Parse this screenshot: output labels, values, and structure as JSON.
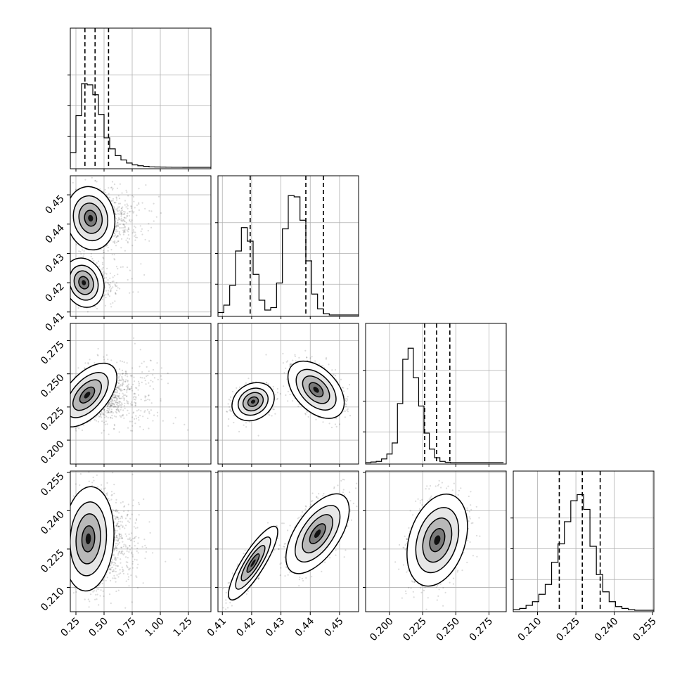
{
  "chart_data": {
    "type": "corner",
    "grid": true,
    "colors": {
      "axes": "#000000",
      "grid": "#b0b0b0",
      "points": "#000000",
      "fill_dark": "#111111",
      "fill_light": "#ffffff"
    },
    "params": [
      {
        "id": "p0",
        "range": [
          0.2,
          1.45
        ],
        "ticks": [
          0.25,
          0.5,
          0.75,
          1.0,
          1.25
        ],
        "tick_labels": [
          "0.25",
          "0.50",
          "0.75",
          "1.00",
          "1.25"
        ],
        "quantiles": [
          0.33,
          0.42,
          0.54
        ],
        "hist": {
          "edges_start": 0.2,
          "bin_width": 0.05,
          "counts": [
            0.12,
            0.42,
            0.68,
            0.67,
            0.59,
            0.43,
            0.24,
            0.15,
            0.095,
            0.06,
            0.035,
            0.02,
            0.013,
            0.008,
            0.004,
            0.003,
            0.002,
            0.001,
            0.0005,
            0.0003,
            0.0002,
            0.0001,
            0.0,
            0.0,
            0.0
          ]
        }
      },
      {
        "id": "p1",
        "range": [
          0.4085,
          0.4565
        ],
        "ticks": [
          0.41,
          0.42,
          0.43,
          0.44,
          0.45
        ],
        "tick_labels": [
          "0.41",
          "0.42",
          "0.43",
          "0.44",
          "0.45"
        ],
        "quantiles": [
          0.4195,
          0.4385,
          0.4445
        ],
        "hist": {
          "edges_start": 0.4085,
          "bin_width": 0.002,
          "counts": [
            0.02,
            0.08,
            0.24,
            0.52,
            0.71,
            0.6,
            0.33,
            0.12,
            0.04,
            0.06,
            0.26,
            0.7,
            0.97,
            0.96,
            0.77,
            0.44,
            0.17,
            0.05,
            0.01,
            0.0,
            0.0,
            0.0,
            0.0,
            0.0
          ]
        }
      },
      {
        "id": "p2",
        "range": [
          0.182,
          0.288
        ],
        "ticks": [
          0.2,
          0.225,
          0.25,
          0.275
        ],
        "tick_labels": [
          "0.200",
          "0.225",
          "0.250",
          "0.275"
        ],
        "quantiles": [
          0.2265,
          0.2355,
          0.2455
        ],
        "hist": {
          "edges_start": 0.182,
          "bin_width": 0.004,
          "counts": [
            0.0,
            0.005,
            0.01,
            0.03,
            0.07,
            0.16,
            0.48,
            0.84,
            0.93,
            0.69,
            0.46,
            0.24,
            0.11,
            0.04,
            0.01,
            0.003,
            0.0,
            0.0,
            0.0,
            0.0,
            0.0,
            0.0,
            0.0,
            0.0,
            0.0,
            0.0
          ]
        }
      },
      {
        "id": "p3",
        "range": [
          0.2005,
          0.2555
        ],
        "ticks": [
          0.21,
          0.225,
          0.24,
          0.255
        ],
        "tick_labels": [
          "0.210",
          "0.225",
          "0.240",
          "0.255"
        ],
        "quantiles": [
          0.2185,
          0.2275,
          0.2345
        ],
        "hist": {
          "edges_start": 0.2005,
          "bin_width": 0.0025,
          "counts": [
            0.005,
            0.015,
            0.04,
            0.07,
            0.13,
            0.21,
            0.39,
            0.54,
            0.72,
            0.89,
            0.94,
            0.82,
            0.52,
            0.29,
            0.15,
            0.07,
            0.03,
            0.015,
            0.005,
            0.0,
            0.0,
            0.0
          ]
        }
      }
    ],
    "pairs": [
      {
        "x": "p0",
        "y": "p1",
        "modes": [
          {
            "cx": 0.38,
            "cy": 0.442,
            "sx": 0.09,
            "sy": 0.0045,
            "rho": -0.1,
            "w": 0.68
          },
          {
            "cx": 0.32,
            "cy": 0.42,
            "sx": 0.075,
            "sy": 0.0035,
            "rho": -0.15,
            "w": 0.32
          }
        ]
      },
      {
        "x": "p0",
        "y": "p2",
        "modes": [
          {
            "cx": 0.35,
            "cy": 0.234,
            "sx": 0.11,
            "sy": 0.01,
            "rho": 0.55,
            "w": 1.0
          }
        ]
      },
      {
        "x": "p1",
        "y": "p2",
        "modes": [
          {
            "cx": 0.4205,
            "cy": 0.229,
            "sx": 0.003,
            "sy": 0.006,
            "rho": 0.2,
            "w": 0.3
          },
          {
            "cx": 0.442,
            "cy": 0.238,
            "sx": 0.004,
            "sy": 0.009,
            "rho": -0.45,
            "w": 0.7
          }
        ]
      },
      {
        "x": "p0",
        "y": "p3",
        "modes": [
          {
            "cx": 0.36,
            "cy": 0.229,
            "sx": 0.095,
            "sy": 0.0085,
            "rho": 0.1,
            "w": 1.0
          }
        ]
      },
      {
        "x": "p1",
        "y": "p3",
        "modes": [
          {
            "cx": 0.4205,
            "cy": 0.2195,
            "sx": 0.0035,
            "sy": 0.006,
            "rho": 0.85,
            "w": 0.3
          },
          {
            "cx": 0.4425,
            "cy": 0.231,
            "sx": 0.0045,
            "sy": 0.0065,
            "rho": 0.6,
            "w": 0.7
          }
        ]
      },
      {
        "x": "p2",
        "y": "p3",
        "modes": [
          {
            "cx": 0.236,
            "cy": 0.2285,
            "sx": 0.0095,
            "sy": 0.0075,
            "rho": 0.3,
            "w": 1.0
          }
        ]
      }
    ]
  }
}
